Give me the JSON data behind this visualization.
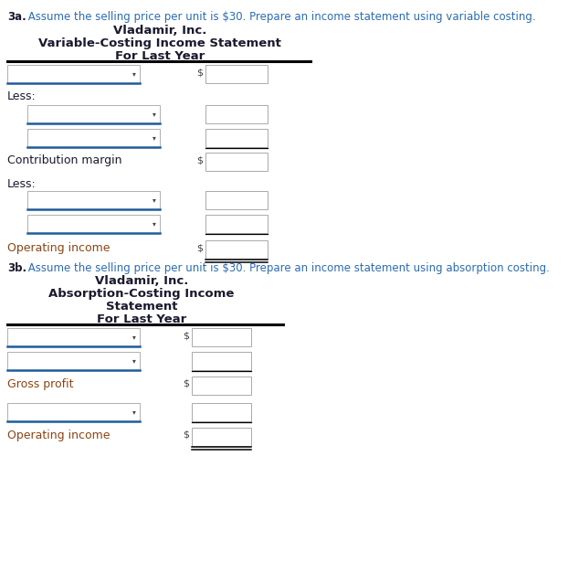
{
  "bg_color": "#ffffff",
  "blue_text_color": "#2B6CB0",
  "dark_text_color": "#1a1a2e",
  "orange_text_color": "#8B4513",
  "blue_line_color": "#1F5C99",
  "part_a": {
    "prefix": "3a.",
    "instruction": " Assume the selling price per unit is $30. Prepare an income statement using variable costing.",
    "company": "Vladamir, Inc.",
    "stmt_line1": "Variable-Costing Income Statement",
    "stmt_line2": "For Last Year"
  },
  "part_b": {
    "prefix": "3b.",
    "instruction": " Assume the selling price per unit is $30. Prepare an income statement using absorption costing.",
    "company": "Vladamir, Inc.",
    "stmt_line1": "Absorption-Costing Income",
    "stmt_line2": "Statement",
    "stmt_line3": "For Last Year"
  }
}
